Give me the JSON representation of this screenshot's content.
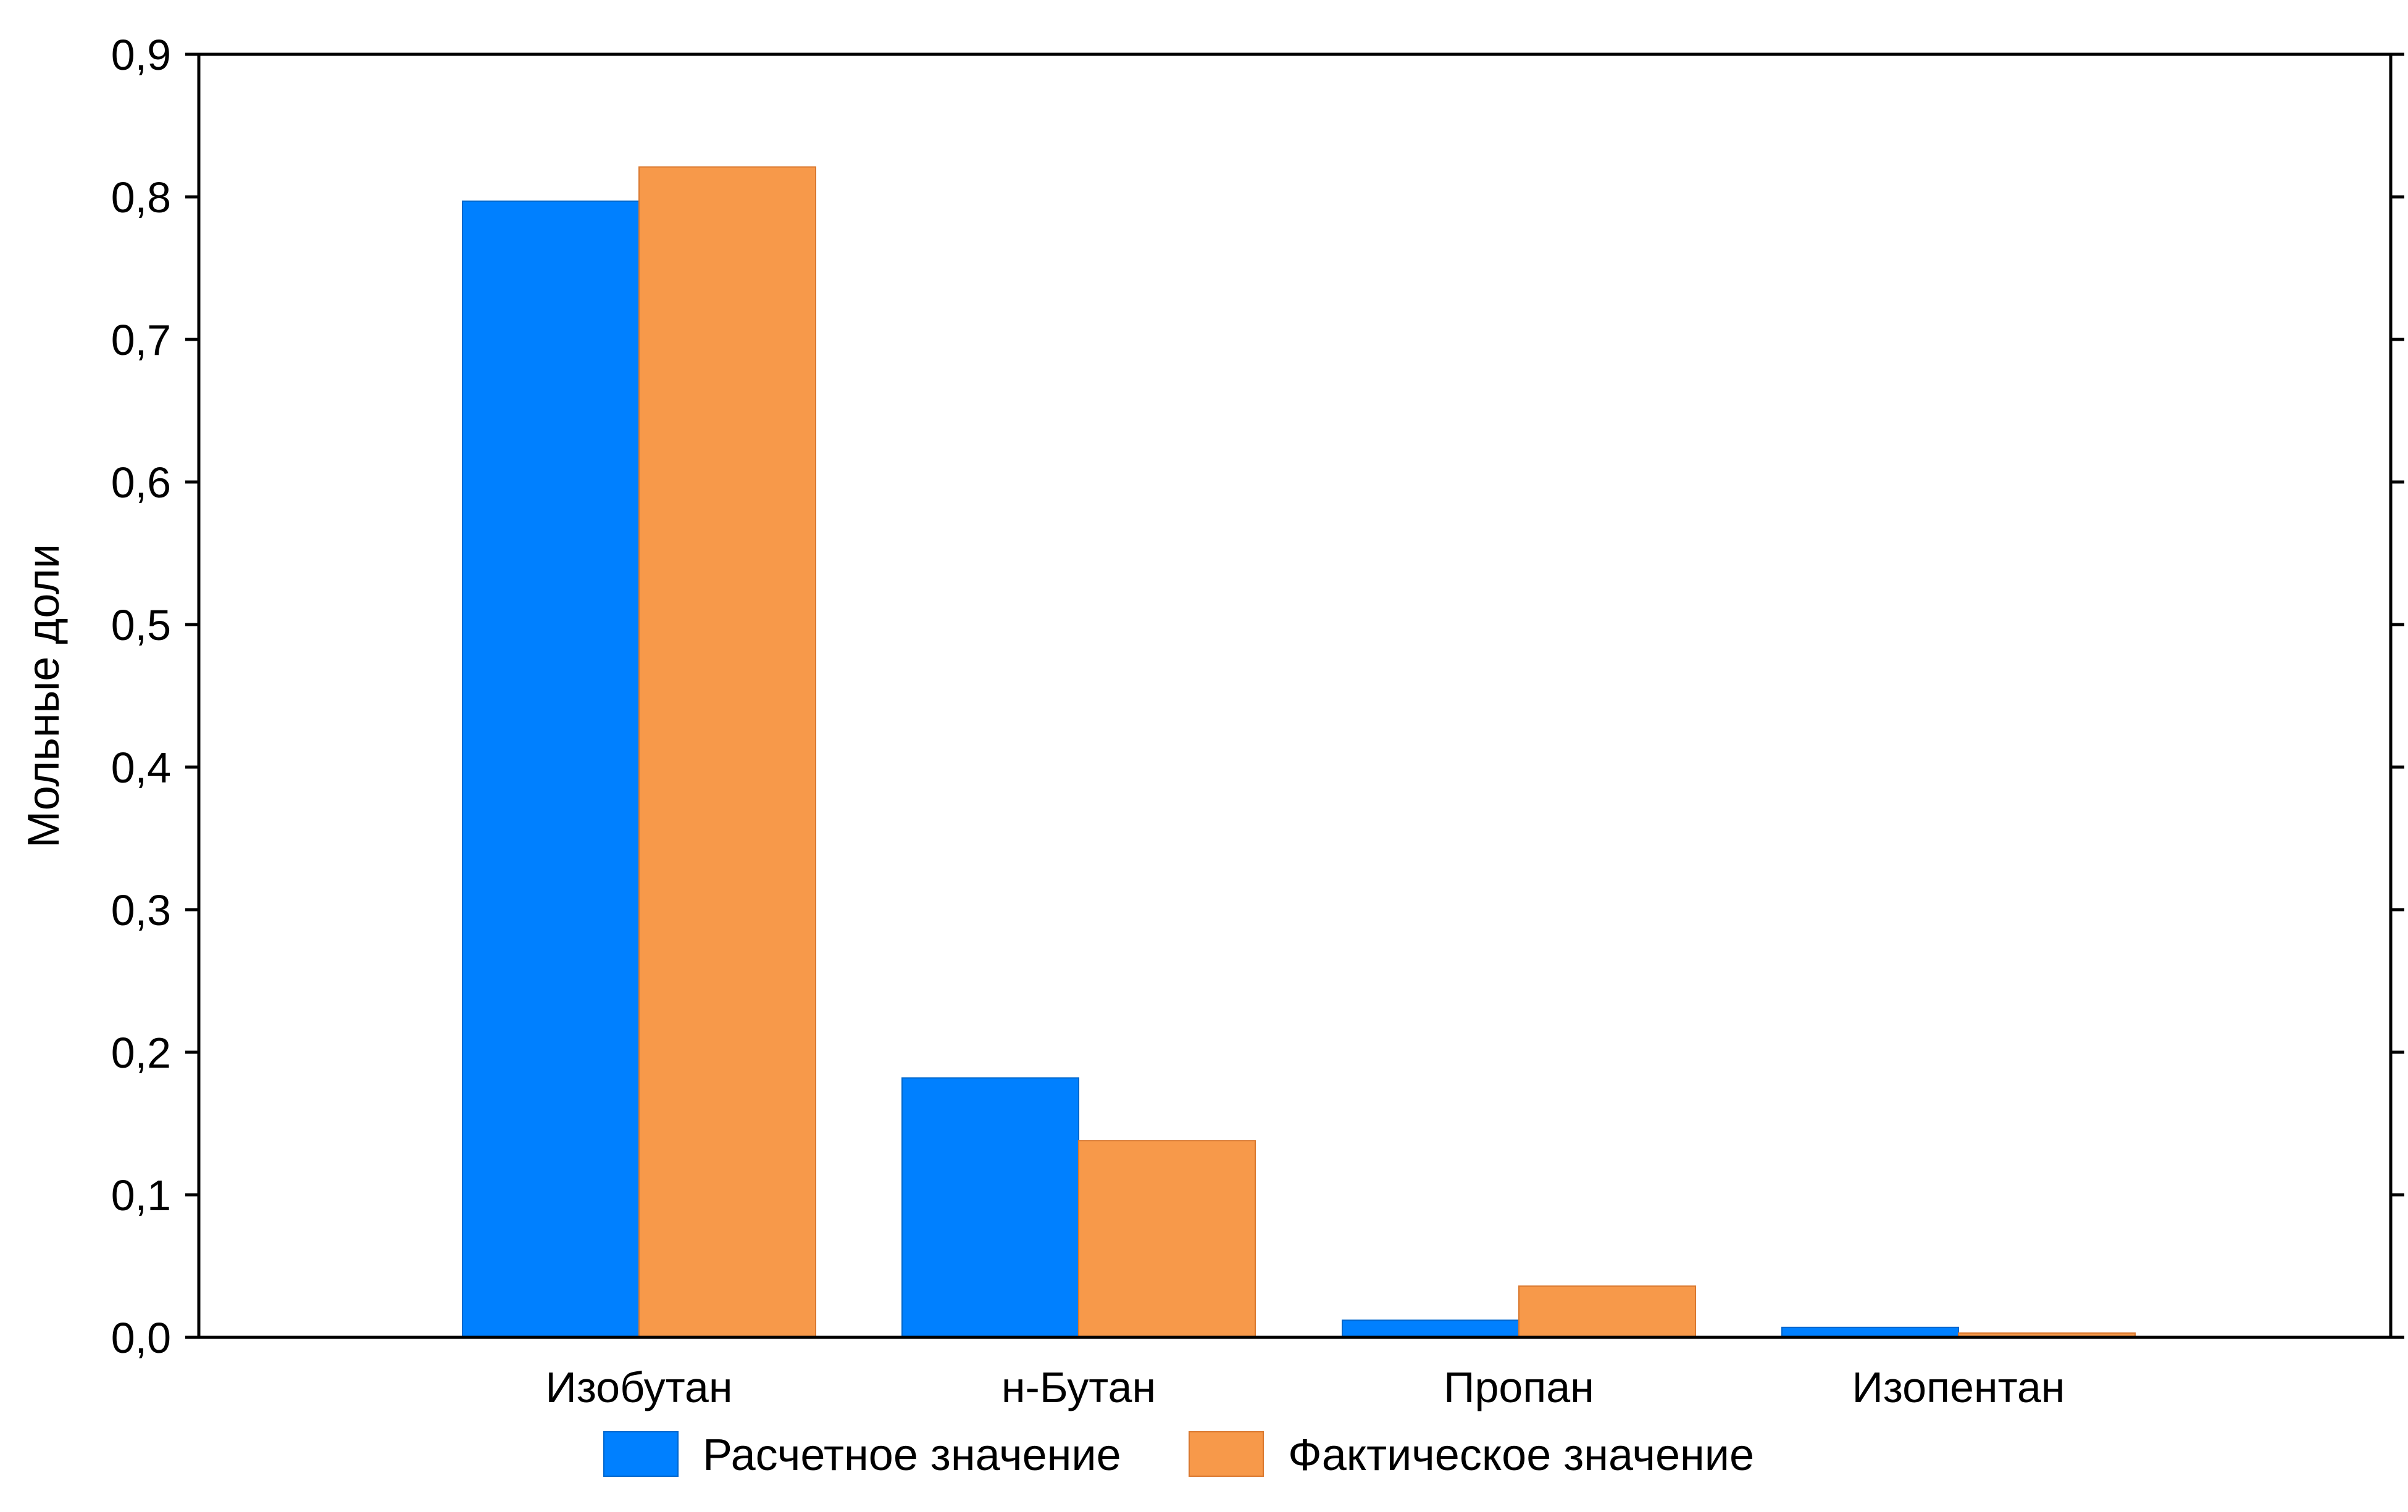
{
  "chart_data": {
    "type": "bar",
    "title": "",
    "xlabel": "",
    "ylabel": "Мольные доли",
    "categories": [
      "Изобутан",
      "н-Бутан",
      "Пропан",
      "Изопентан"
    ],
    "series": [
      {
        "name": "Расчетное значение",
        "values": [
          0.797,
          0.182,
          0.012,
          0.007
        ],
        "color": "#0080ff"
      },
      {
        "name": "Фактическое значение",
        "values": [
          0.821,
          0.138,
          0.036,
          0.003
        ],
        "color": "#f7994a"
      }
    ],
    "ylim": [
      0,
      0.9
    ],
    "yticks": [
      "0,0",
      "0,1",
      "0,2",
      "0,3",
      "0,4",
      "0,5",
      "0,6",
      "0,7",
      "0,8",
      "0,9"
    ],
    "grid": false,
    "legend_position": "bottom-center"
  }
}
